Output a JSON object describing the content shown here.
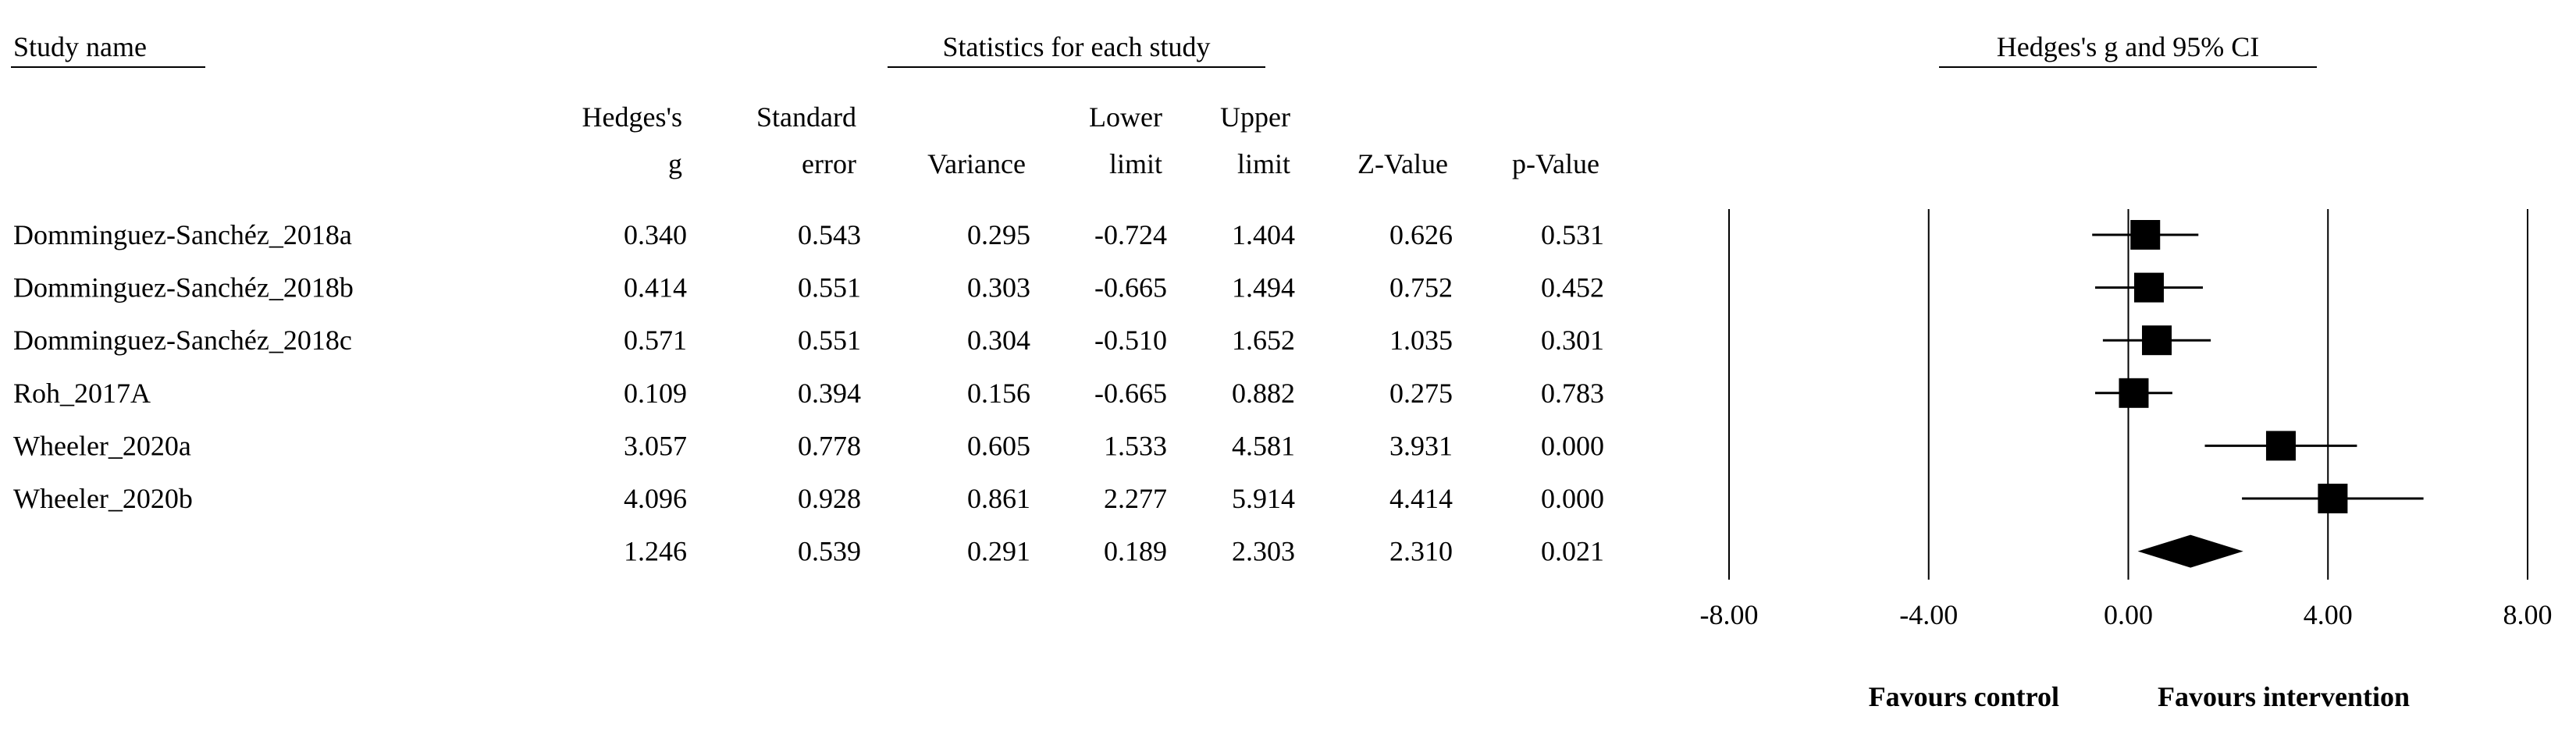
{
  "chart_data": {
    "type": "forest",
    "study_header": "Study name",
    "stats_header": "Statistics for each study",
    "title": "Hedges's g and 95% CI",
    "categories": [
      "Domminguez-Sanchéz_2018a",
      "Domminguez-Sanchéz_2018b",
      "Domminguez-Sanchéz_2018c",
      "Roh_2017A",
      "Wheeler_2020a",
      "Wheeler_2020b",
      null
    ],
    "columns": [
      {
        "header": [
          "Hedges's",
          "g"
        ],
        "values": [
          0.34,
          0.414,
          0.571,
          0.109,
          3.057,
          4.096,
          1.246
        ],
        "value_labels": [
          "0.340",
          "0.414",
          "0.571",
          "0.109",
          "3.057",
          "4.096",
          "1.246"
        ]
      },
      {
        "header": [
          "Standard",
          "error"
        ],
        "values": [
          0.543,
          0.551,
          0.551,
          0.394,
          0.778,
          0.928,
          0.539
        ],
        "value_labels": [
          "0.543",
          "0.551",
          "0.551",
          "0.394",
          "0.778",
          "0.928",
          "0.539"
        ]
      },
      {
        "header": [
          "Variance"
        ],
        "values": [
          0.295,
          0.303,
          0.304,
          0.156,
          0.605,
          0.861,
          0.291
        ],
        "value_labels": [
          "0.295",
          "0.303",
          "0.304",
          "0.156",
          "0.605",
          "0.861",
          "0.291"
        ]
      },
      {
        "header": [
          "Lower",
          "limit"
        ],
        "values": [
          -0.724,
          -0.665,
          -0.51,
          -0.665,
          1.533,
          2.277,
          0.189
        ],
        "value_labels": [
          "-0.724",
          "-0.665",
          "-0.510",
          "-0.665",
          "1.533",
          "2.277",
          "0.189"
        ]
      },
      {
        "header": [
          "Upper",
          "limit"
        ],
        "values": [
          1.404,
          1.494,
          1.652,
          0.882,
          4.581,
          5.914,
          2.303
        ],
        "value_labels": [
          "1.404",
          "1.494",
          "1.652",
          "0.882",
          "4.581",
          "5.914",
          "2.303"
        ]
      },
      {
        "header": [
          "Z-Value"
        ],
        "values": [
          0.626,
          0.752,
          1.035,
          0.275,
          3.931,
          4.414,
          2.31
        ],
        "value_labels": [
          "0.626",
          "0.752",
          "1.035",
          "0.275",
          "3.931",
          "4.414",
          "2.310"
        ]
      },
      {
        "header": [
          "p-Value"
        ],
        "values": [
          0.531,
          0.452,
          0.301,
          0.783,
          0.0,
          0.0,
          0.021
        ],
        "value_labels": [
          "0.531",
          "0.452",
          "0.301",
          "0.783",
          "0.000",
          "0.000",
          "0.021"
        ]
      }
    ],
    "xlim": [
      -8,
      8
    ],
    "xticks": [
      {
        "value": -8,
        "label": "-8.00"
      },
      {
        "value": -4,
        "label": "-4.00"
      },
      {
        "value": 0,
        "label": "0.00"
      },
      {
        "value": 4,
        "label": "4.00"
      },
      {
        "value": 8,
        "label": "8.00"
      }
    ],
    "grid": true,
    "left_label": "Favours control",
    "right_label": "Favours intervention",
    "color": "#000000"
  }
}
